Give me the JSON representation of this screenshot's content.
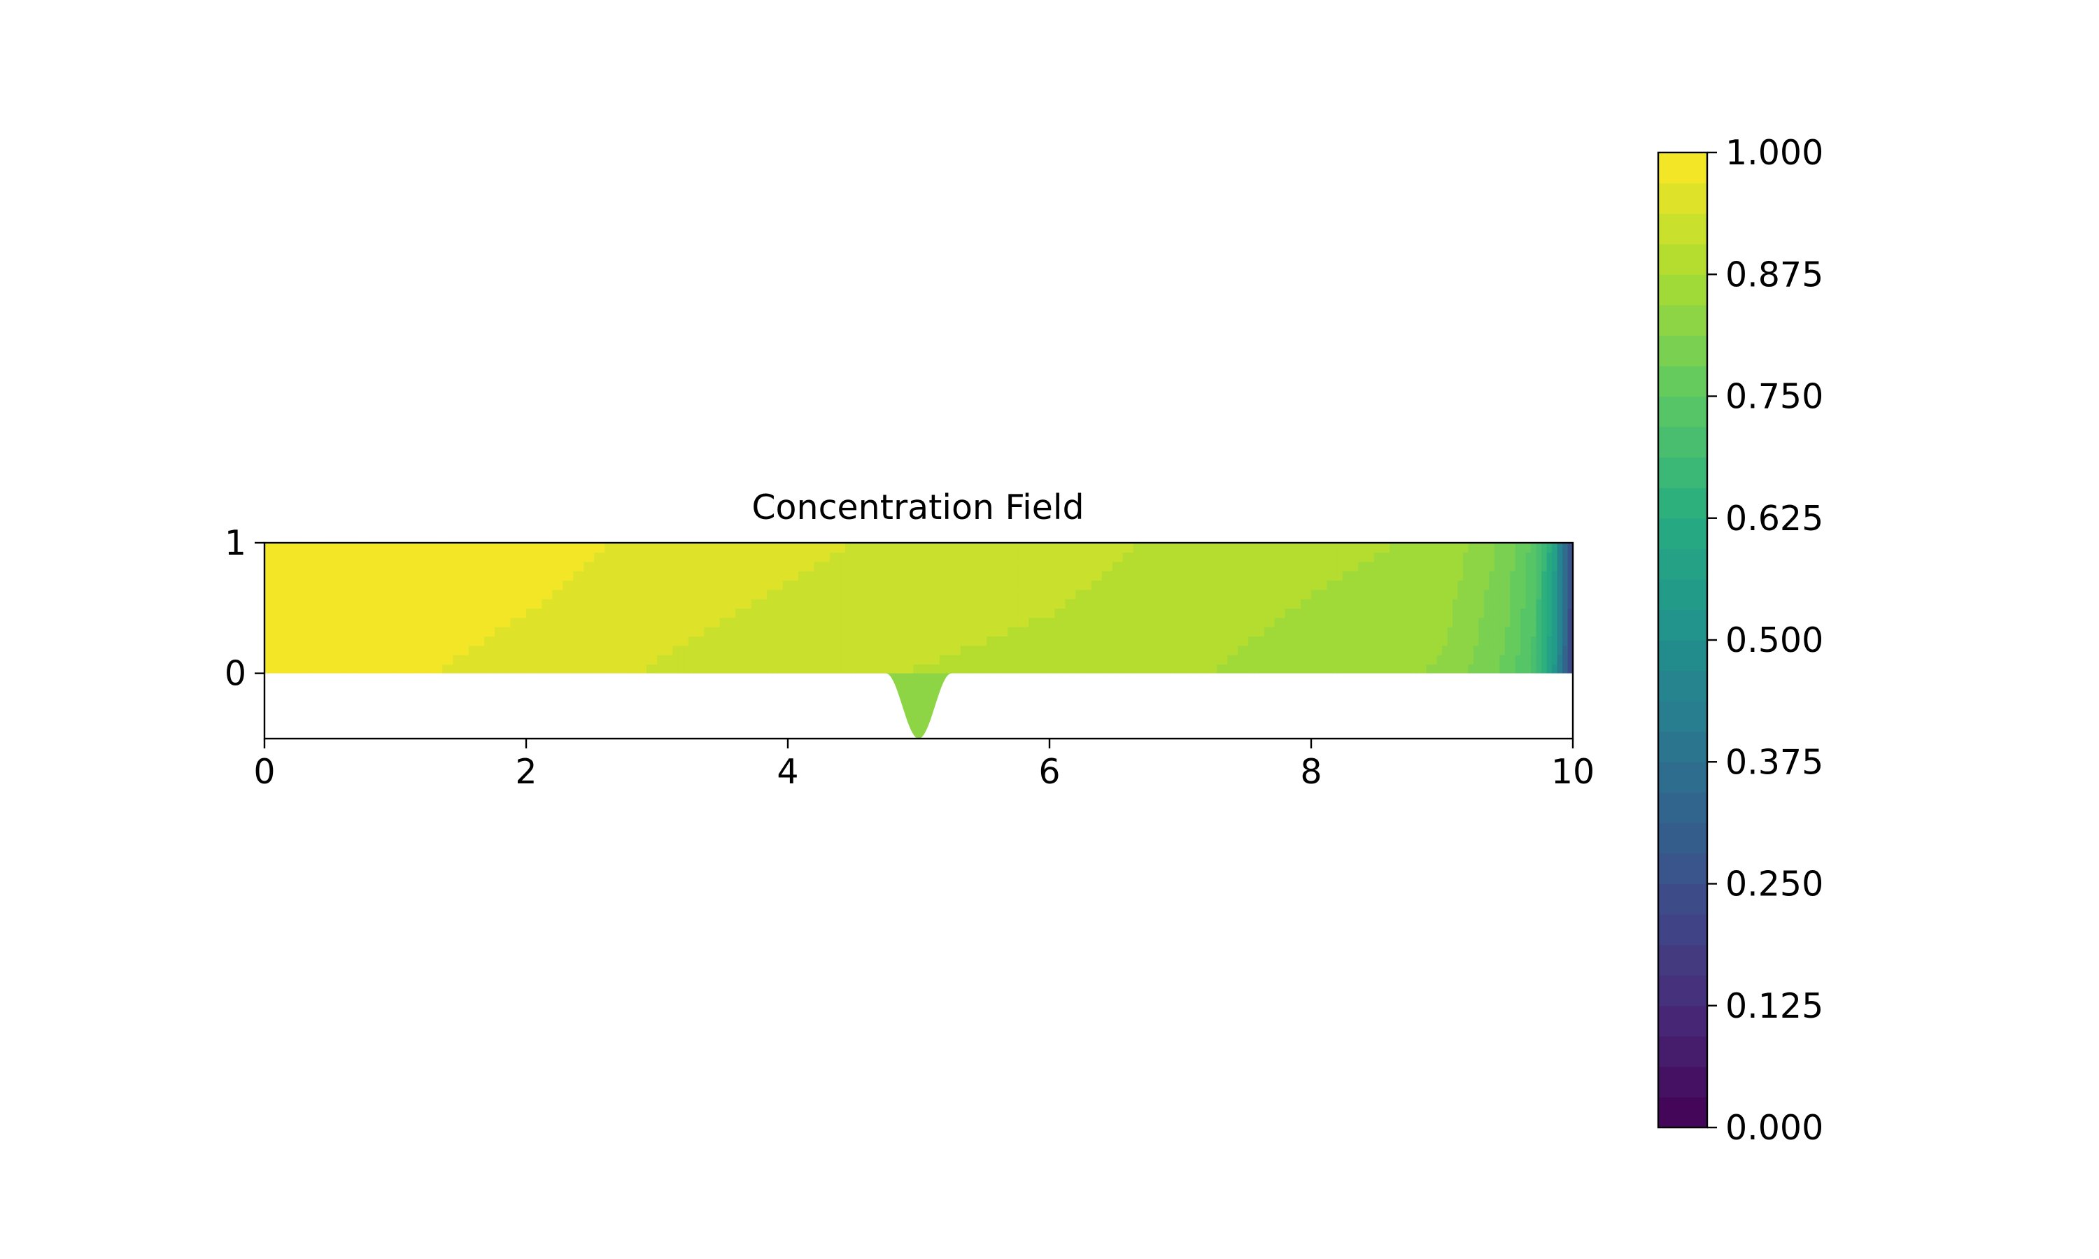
{
  "chart_data": {
    "type": "heatmap",
    "title": "Concentration Field",
    "xlabel": "",
    "ylabel": "",
    "xlim": [
      0,
      10
    ],
    "ylim": [
      -0.5,
      1
    ],
    "xticks": [
      0,
      2,
      4,
      6,
      8,
      10
    ],
    "yticks": [
      0,
      1
    ],
    "colormap": "viridis",
    "grid": false,
    "domain": {
      "channel": {
        "x": [
          0,
          10
        ],
        "y": [
          0,
          1
        ]
      },
      "pocket": {
        "center_x": 5,
        "half_width": 0.25,
        "depth": 0.5,
        "shape": "cosine-bump"
      }
    },
    "field_samples": {
      "x": [
        0,
        1,
        2,
        3,
        4,
        5,
        6,
        7,
        8,
        9,
        9.3,
        9.5,
        9.7,
        9.85,
        10
      ],
      "c_top": [
        1.0,
        1.0,
        0.985,
        0.96,
        0.945,
        0.93,
        0.92,
        0.9,
        0.885,
        0.87,
        0.83,
        0.8,
        0.74,
        0.6,
        0.2
      ],
      "c_bottom": [
        1.0,
        0.975,
        0.955,
        0.935,
        0.92,
        0.905,
        0.895,
        0.88,
        0.86,
        0.84,
        0.8,
        0.77,
        0.71,
        0.55,
        0.2
      ],
      "c_pocket": 0.82
    },
    "colorbar": {
      "min": 0,
      "max": 1,
      "levels": 32,
      "ticks": [
        "0.000",
        "0.125",
        "0.250",
        "0.375",
        "0.500",
        "0.625",
        "0.750",
        "0.875",
        "1.000"
      ]
    }
  }
}
